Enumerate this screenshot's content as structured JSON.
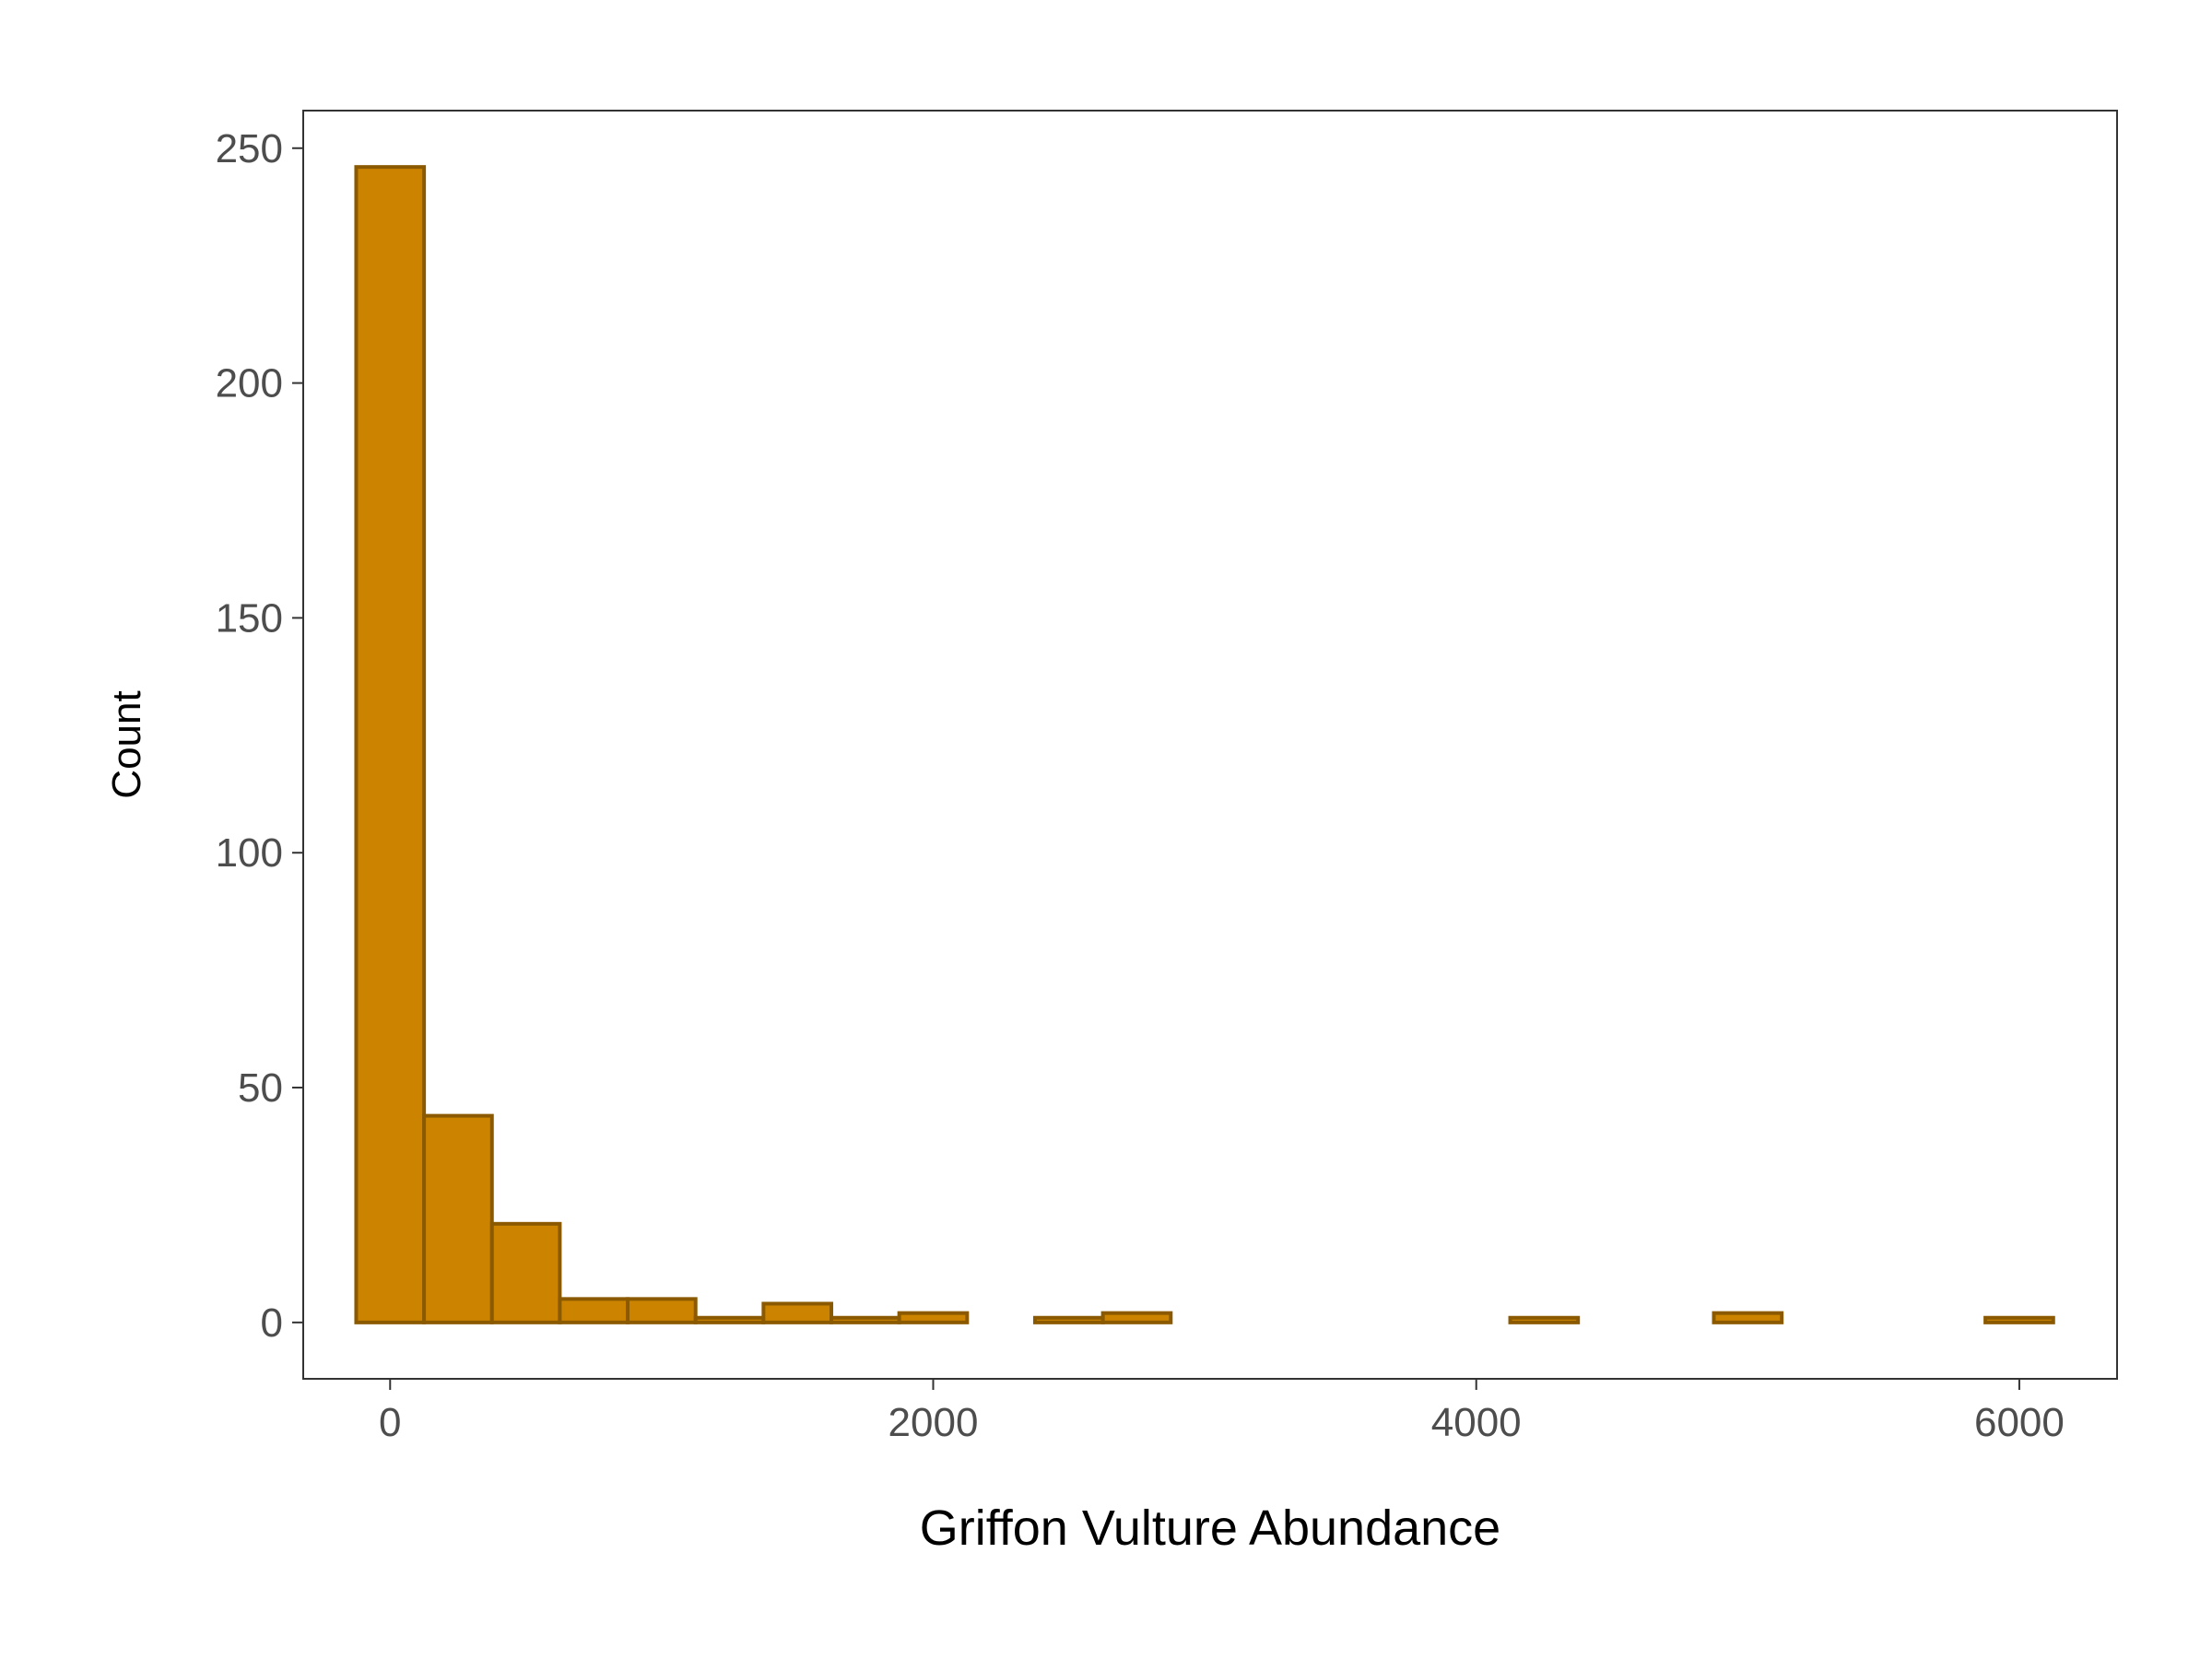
{
  "chart_data": {
    "type": "histogram",
    "title": "",
    "xlabel": "Griffon Vulture Abundance",
    "ylabel": "Count",
    "xlim": [
      -320,
      6360
    ],
    "ylim": [
      -12,
      258
    ],
    "x_ticks": [
      0,
      2000,
      4000,
      6000
    ],
    "x_tick_labels": [
      "0",
      "2000",
      "4000",
      "6000"
    ],
    "y_ticks": [
      0,
      50,
      100,
      150,
      200,
      250
    ],
    "y_tick_labels": [
      "0",
      "50",
      "100",
      "150",
      "200",
      "250"
    ],
    "bin_width": 250,
    "bins": [
      {
        "x0": -125,
        "x1": 125,
        "count": 246
      },
      {
        "x0": 125,
        "x1": 375,
        "count": 44
      },
      {
        "x0": 375,
        "x1": 625,
        "count": 21
      },
      {
        "x0": 625,
        "x1": 875,
        "count": 5
      },
      {
        "x0": 875,
        "x1": 1125,
        "count": 5
      },
      {
        "x0": 1125,
        "x1": 1375,
        "count": 1
      },
      {
        "x0": 1375,
        "x1": 1625,
        "count": 4
      },
      {
        "x0": 1625,
        "x1": 1875,
        "count": 1
      },
      {
        "x0": 1875,
        "x1": 2125,
        "count": 2
      },
      {
        "x0": 2125,
        "x1": 2375,
        "count": 0
      },
      {
        "x0": 2375,
        "x1": 2625,
        "count": 1
      },
      {
        "x0": 2625,
        "x1": 2875,
        "count": 2
      },
      {
        "x0": 2875,
        "x1": 3125,
        "count": 0
      },
      {
        "x0": 3125,
        "x1": 3375,
        "count": 0
      },
      {
        "x0": 3375,
        "x1": 3625,
        "count": 0
      },
      {
        "x0": 3625,
        "x1": 3875,
        "count": 0
      },
      {
        "x0": 3875,
        "x1": 4125,
        "count": 0
      },
      {
        "x0": 4125,
        "x1": 4375,
        "count": 1
      },
      {
        "x0": 4375,
        "x1": 4625,
        "count": 0
      },
      {
        "x0": 4625,
        "x1": 4875,
        "count": 0
      },
      {
        "x0": 4875,
        "x1": 5125,
        "count": 2
      },
      {
        "x0": 5125,
        "x1": 5375,
        "count": 0
      },
      {
        "x0": 5375,
        "x1": 5625,
        "count": 0
      },
      {
        "x0": 5625,
        "x1": 5875,
        "count": 0
      },
      {
        "x0": 5875,
        "x1": 6125,
        "count": 1
      }
    ],
    "grid": false,
    "legend": "none",
    "colors": {
      "bar_fill": "#CC8400",
      "bar_stroke": "#8B5A00",
      "panel_border": "#333333",
      "tick_label": "#4d4d4d",
      "axis_title": "#000000"
    }
  }
}
